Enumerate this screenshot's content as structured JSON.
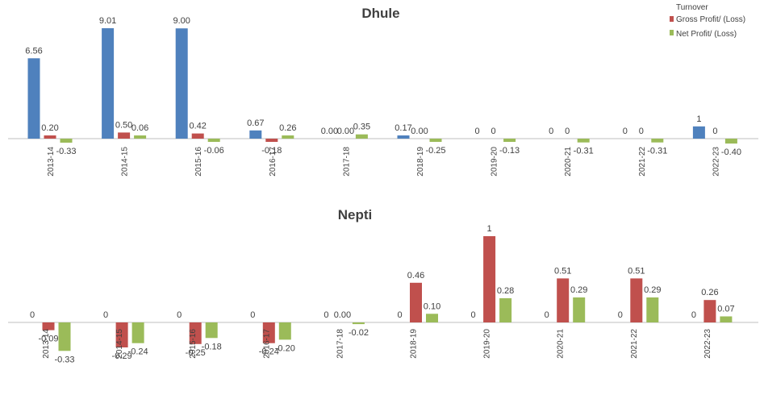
{
  "legend": {
    "position": "top-right",
    "items": [
      {
        "label": "Turnover",
        "color": ""
      },
      {
        "label": "Gross Profit/ (Loss)",
        "color": "#C0504D"
      },
      {
        "label": "Net Profit/ (Loss)",
        "color": "#9BBB59"
      }
    ]
  },
  "chart_data": [
    {
      "type": "bar",
      "title": "Dhule",
      "categories": [
        "2013-14",
        "2014-15",
        "2015-16",
        "2016-17",
        "2017-18",
        "2018-19",
        "2019-20",
        "2020-21",
        "2021-22",
        "2022-23"
      ],
      "series": [
        {
          "name": "Turnover",
          "color": "#4F81BD",
          "values": [
            6.56,
            9.01,
            9.0,
            0.67,
            0.0,
            0.17,
            0,
            0,
            0,
            1
          ],
          "labels": [
            "6.56",
            "9.01",
            "9.00",
            "0.67",
            "0.00",
            "0.17",
            "0",
            "0",
            "0",
            "1"
          ]
        },
        {
          "name": "Gross Profit/ (Loss)",
          "color": "#C0504D",
          "values": [
            0.2,
            0.5,
            0.42,
            -0.18,
            0.0,
            0.0,
            0,
            0,
            0,
            0
          ],
          "labels": [
            "0.20",
            "0.50",
            "0.42",
            "-0.18",
            "0.00",
            "0.00",
            "0",
            "0",
            "0",
            "0"
          ]
        },
        {
          "name": "Net Profit/ (Loss)",
          "color": "#9BBB59",
          "values": [
            -0.33,
            0.06,
            -0.06,
            0.26,
            0.35,
            -0.25,
            -0.13,
            -0.31,
            -0.31,
            -0.4
          ],
          "labels": [
            "-0.33",
            "0.06",
            "-0.06",
            "0.26",
            "0.35",
            "-0.25",
            "-0.13",
            "-0.31",
            "-0.31",
            "-0.40"
          ]
        }
      ]
    },
    {
      "type": "bar",
      "title": "Nepti",
      "categories": [
        "2013-14",
        "2014-15",
        "2015-16",
        "2016-17",
        "2017-18",
        "2018-19",
        "2019-20",
        "2020-21",
        "2021-22",
        "2022-23"
      ],
      "series": [
        {
          "name": "Turnover",
          "color": "#4F81BD",
          "values": [
            0,
            0,
            0,
            0,
            0,
            0,
            0,
            0,
            0,
            0
          ],
          "labels": [
            "0",
            "0",
            "0",
            "0",
            "0",
            "0",
            "0",
            "0",
            "0",
            "0"
          ]
        },
        {
          "name": "Gross Profit/ (Loss)",
          "color": "#C0504D",
          "values": [
            -0.09,
            -0.29,
            -0.25,
            -0.24,
            0.0,
            0.46,
            1,
            0.51,
            0.51,
            0.26
          ],
          "labels": [
            "-0.09",
            "-0.29",
            "-0.25",
            "-0.24",
            "0.00",
            "0.46",
            "1",
            "0.51",
            "0.51",
            "0.26"
          ]
        },
        {
          "name": "Net Profit/ (Loss)",
          "color": "#9BBB59",
          "values": [
            -0.33,
            -0.24,
            -0.18,
            -0.2,
            -0.02,
            0.1,
            0.28,
            0.29,
            0.29,
            0.07
          ],
          "labels": [
            "-0.33",
            "-0.24",
            "-0.18",
            "-0.20",
            "-0.02",
            "0.10",
            "0.28",
            "0.29",
            "0.29",
            "0.07"
          ]
        }
      ]
    }
  ]
}
